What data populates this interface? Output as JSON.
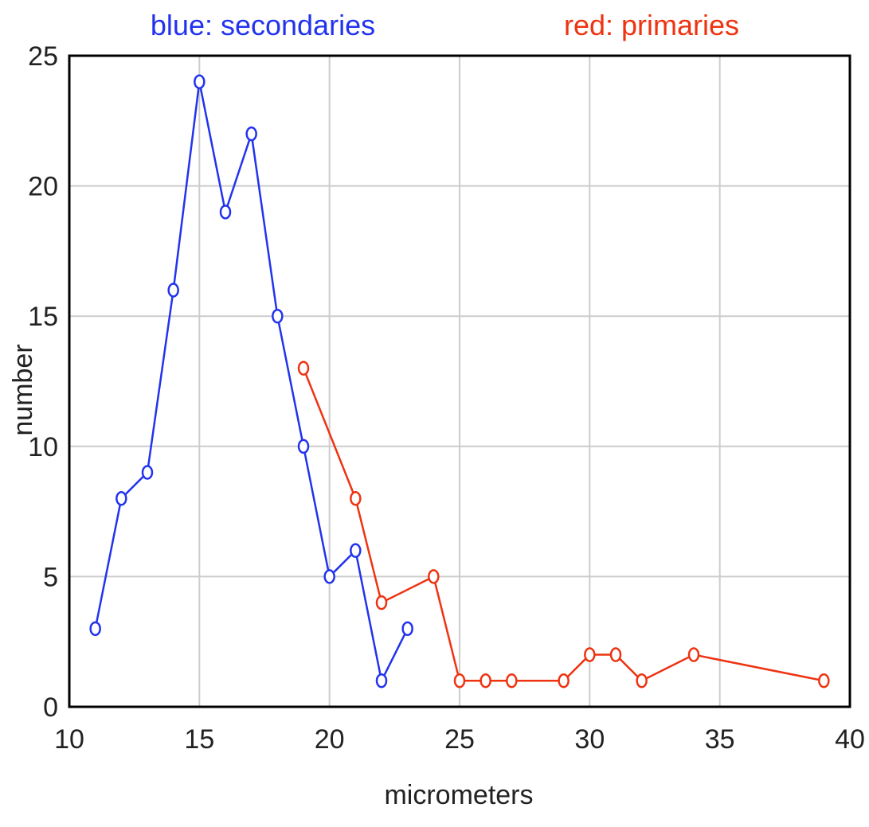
{
  "legend": {
    "blue_label": "blue: secondaries",
    "red_label": "red: primaries"
  },
  "chart_data": {
    "type": "line",
    "xlabel": "micrometers",
    "ylabel": "number",
    "xlim": [
      10,
      40
    ],
    "ylim": [
      0,
      25
    ],
    "x_ticks": [
      "10",
      "15",
      "20",
      "25",
      "30",
      "35",
      "40"
    ],
    "y_ticks": [
      "0",
      "5",
      "10",
      "15",
      "20",
      "25"
    ],
    "grid": true,
    "legend_placement": "top",
    "series": [
      {
        "name": "secondaries",
        "color": "#2233ee",
        "x": [
          11,
          12,
          13,
          14,
          15,
          16,
          17,
          18,
          19,
          20,
          21,
          22,
          23
        ],
        "y": [
          3,
          8,
          9,
          16,
          24,
          19,
          22,
          15,
          10,
          5,
          6,
          1,
          3
        ]
      },
      {
        "name": "primaries",
        "color": "#ee3311",
        "x": [
          19,
          21,
          22,
          24,
          25,
          26,
          27,
          29,
          30,
          31,
          32,
          34,
          39
        ],
        "y": [
          13,
          8,
          4,
          5,
          1,
          1,
          1,
          1,
          2,
          2,
          1,
          2,
          1
        ]
      }
    ]
  }
}
